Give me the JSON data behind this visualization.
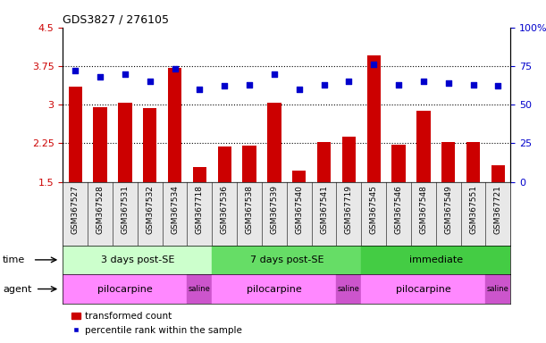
{
  "title": "GDS3827 / 276105",
  "samples": [
    "GSM367527",
    "GSM367528",
    "GSM367531",
    "GSM367532",
    "GSM367534",
    "GSM367718",
    "GSM367536",
    "GSM367538",
    "GSM367539",
    "GSM367540",
    "GSM367541",
    "GSM367719",
    "GSM367545",
    "GSM367546",
    "GSM367548",
    "GSM367549",
    "GSM367551",
    "GSM367721"
  ],
  "transformed_counts": [
    3.35,
    2.95,
    3.03,
    2.93,
    3.72,
    1.78,
    2.18,
    2.2,
    3.03,
    1.72,
    2.27,
    2.37,
    3.95,
    2.22,
    2.88,
    2.28,
    2.27,
    1.82
  ],
  "percentile_ranks": [
    72,
    68,
    70,
    65,
    73,
    60,
    62,
    63,
    70,
    60,
    63,
    65,
    76,
    63,
    65,
    64,
    63,
    62
  ],
  "bar_color": "#cc0000",
  "dot_color": "#0000cc",
  "ylim_left": [
    1.5,
    4.5
  ],
  "ylim_right": [
    0,
    100
  ],
  "yticks_left": [
    1.5,
    2.25,
    3.0,
    3.75,
    4.5
  ],
  "ytick_labels_left": [
    "1.5",
    "2.25",
    "3",
    "3.75",
    "4.5"
  ],
  "yticks_right": [
    0,
    25,
    50,
    75,
    100
  ],
  "ytick_labels_right": [
    "0",
    "25",
    "50",
    "75",
    "100%"
  ],
  "hlines": [
    2.25,
    3.0,
    3.75
  ],
  "time_groups": [
    {
      "label": "3 days post-SE",
      "start": 0,
      "end": 5,
      "color": "#ccffcc"
    },
    {
      "label": "7 days post-SE",
      "start": 6,
      "end": 11,
      "color": "#66dd66"
    },
    {
      "label": "immediate",
      "start": 12,
      "end": 17,
      "color": "#44cc44"
    }
  ],
  "agent_groups": [
    {
      "label": "pilocarpine",
      "start": 0,
      "end": 4,
      "color": "#ff88ff"
    },
    {
      "label": "saline",
      "start": 5,
      "end": 5,
      "color": "#cc55cc"
    },
    {
      "label": "pilocarpine",
      "start": 6,
      "end": 10,
      "color": "#ff88ff"
    },
    {
      "label": "saline",
      "start": 11,
      "end": 11,
      "color": "#cc55cc"
    },
    {
      "label": "pilocarpine",
      "start": 12,
      "end": 16,
      "color": "#ff88ff"
    },
    {
      "label": "saline",
      "start": 17,
      "end": 17,
      "color": "#cc55cc"
    }
  ],
  "legend_bar_label": "transformed count",
  "legend_dot_label": "percentile rank within the sample",
  "time_label": "time",
  "agent_label": "agent",
  "axes_bg": "#e8e8e8"
}
